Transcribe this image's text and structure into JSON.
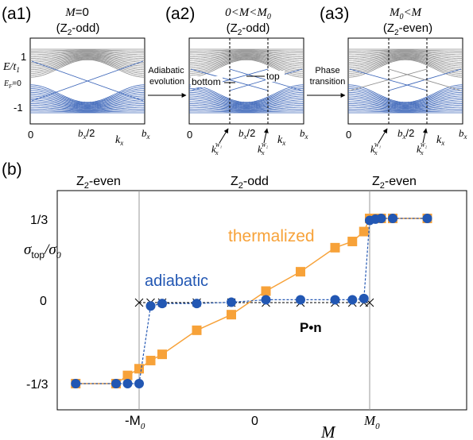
{
  "panel_a1": {
    "tag": "(a1)",
    "title_var": "M",
    "title_rest": "=0",
    "z2_pre": "(Z",
    "z2_sub": "2",
    "z2_post": "-odd)",
    "y_et": "E/t",
    "y_et_sub": "1",
    "y_ef": "E",
    "y_ef_sub": "F",
    "y_ef_post": "=0",
    "y_tick_1": "1",
    "y_tick_m1": "-1",
    "x_tick_0": "0",
    "x_tick_half": "b",
    "x_tick_half_sub": "x",
    "x_tick_half_post": "/2",
    "x_label": "k",
    "x_label_sub": "x",
    "x_end": "b",
    "x_end_sub": "x"
  },
  "arrow1": {
    "line1": "Adiabatic",
    "line2": "evolution"
  },
  "panel_a2": {
    "tag": "(a2)",
    "title": "0<M<M",
    "title_sub": "0",
    "z2_pre": "(Z",
    "z2_sub": "2",
    "z2_post": "-odd)",
    "bottom_label": "bottom",
    "top_label": "top",
    "x_tick_0": "0",
    "x_tick_half": "b",
    "x_tick_half_sub": "x",
    "x_tick_half_post": "/2",
    "x_label": "k",
    "x_label_sub": "x",
    "x_end": "b",
    "x_end_sub": "x",
    "w1": "k",
    "w1_sub": "x",
    "w1_sup": "W₁",
    "w2": "k",
    "w2_sub": "x",
    "w2_sup": "W₂"
  },
  "arrow2": {
    "line1": "Phase",
    "line2": "transition"
  },
  "panel_a3": {
    "tag": "(a3)",
    "title": "M",
    "title_sub": "0",
    "title_post": "<M",
    "z2_pre": "(Z",
    "z2_sub": "2",
    "z2_post": "-even)",
    "x_tick_0": "0",
    "x_tick_half": "b",
    "x_tick_half_sub": "x",
    "x_tick_half_post": "/2",
    "x_label": "k",
    "x_label_sub": "x",
    "x_end": "b",
    "x_end_sub": "x",
    "w1": "k",
    "w1_sub": "x",
    "w1_sup": "W₁",
    "w2": "k",
    "w2_sub": "x",
    "w2_sup": "W₂"
  },
  "panel_b": {
    "tag": "(b)",
    "region_left": "Z",
    "region_left_sub": "2",
    "region_left_post": "-even",
    "region_mid": "Z",
    "region_mid_sub": "2",
    "region_mid_post": "-odd",
    "region_right": "Z",
    "region_right_sub": "2",
    "region_right_post": "-even",
    "thermalized": "thermalized",
    "adiabatic": "adiabatic",
    "pn": "P•n",
    "ylabel_sigma": "σ",
    "ylabel_sub": "top",
    "ylabel_slash": "/σ",
    "ylabel_sub0": "0",
    "xlabel": "M",
    "ytick_top": "1/3",
    "ytick_mid": "0",
    "ytick_bot": "-1/3",
    "xtick_left": "-M",
    "xtick_left_sub": "0",
    "xtick_mid": "0",
    "xtick_right": "M",
    "xtick_right_sub": "0"
  },
  "colors": {
    "orange": "#f7a239",
    "blue": "#2257b3",
    "gray": "#8c8c8c",
    "band_blue": "#3a64b8"
  },
  "chart_data": {
    "type": "line",
    "xlim": [
      -1.7,
      1.7
    ],
    "ylim": [
      -0.333,
      0.333
    ],
    "series": [
      {
        "name": "thermalized",
        "x": [
          -1.55,
          -1.2,
          -1.1,
          -1.0,
          -0.9,
          -0.8,
          -0.5,
          -0.2,
          0.1,
          0.4,
          0.7,
          0.85,
          0.95,
          1.0,
          1.05,
          1.1,
          1.2,
          1.5
        ],
        "y": [
          -0.333,
          -0.333,
          -0.3,
          -0.273,
          -0.24,
          -0.215,
          -0.118,
          -0.055,
          0.04,
          0.118,
          0.215,
          0.24,
          0.28,
          0.333,
          0.333,
          0.333,
          0.333,
          0.333
        ]
      },
      {
        "name": "adiabatic",
        "x": [
          -1.55,
          -1.2,
          -1.1,
          -1.0,
          -0.9,
          -0.8,
          -0.5,
          -0.2,
          0.1,
          0.4,
          0.7,
          0.85,
          0.95,
          1.0,
          1.05,
          1.1,
          1.2,
          1.5
        ],
        "y": [
          -0.333,
          -0.333,
          -0.333,
          -0.333,
          -0.02,
          -0.01,
          -0.01,
          -0.005,
          0.005,
          0.005,
          0.005,
          0.005,
          0.01,
          0.325,
          0.33,
          0.333,
          0.333,
          0.333
        ]
      },
      {
        "name": "P•n",
        "x": [
          -1.0,
          -0.9,
          -0.8,
          -0.5,
          -0.2,
          0.1,
          0.4,
          0.7,
          0.85,
          0.95,
          1.0
        ],
        "y": [
          0,
          0,
          0,
          0,
          0,
          0,
          0,
          0,
          0,
          0,
          0
        ]
      }
    ]
  }
}
